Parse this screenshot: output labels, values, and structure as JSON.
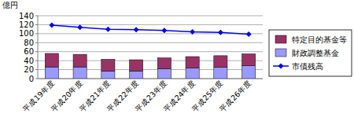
{
  "chart_data": {
    "type": "bar",
    "y_label": "億円",
    "categories": [
      "平成19年度",
      "平成20年度",
      "平成21年度",
      "平成22年度",
      "平成23年度",
      "平成24年度",
      "平成25年度",
      "平成26年度"
    ],
    "series": [
      {
        "name": "財政調整基金",
        "color": "#9999ff",
        "values": [
          26,
          26,
          17,
          17,
          22,
          24,
          25,
          29
        ]
      },
      {
        "name": "特定目的基金等",
        "color": "#993366",
        "values": [
          30,
          28,
          26,
          25,
          24,
          25,
          26,
          26
        ]
      },
      {
        "name": "市債残高",
        "type": "line",
        "color": "#0000ff",
        "marker": "diamond",
        "line_style": "solid",
        "values": [
          119,
          114,
          110,
          109,
          107,
          104,
          103,
          99
        ]
      }
    ],
    "ylim": [
      0,
      140
    ],
    "yticks": [
      0,
      20,
      40,
      60,
      80,
      100,
      120,
      140
    ],
    "stacked": true,
    "grid": true,
    "legend": "right"
  }
}
